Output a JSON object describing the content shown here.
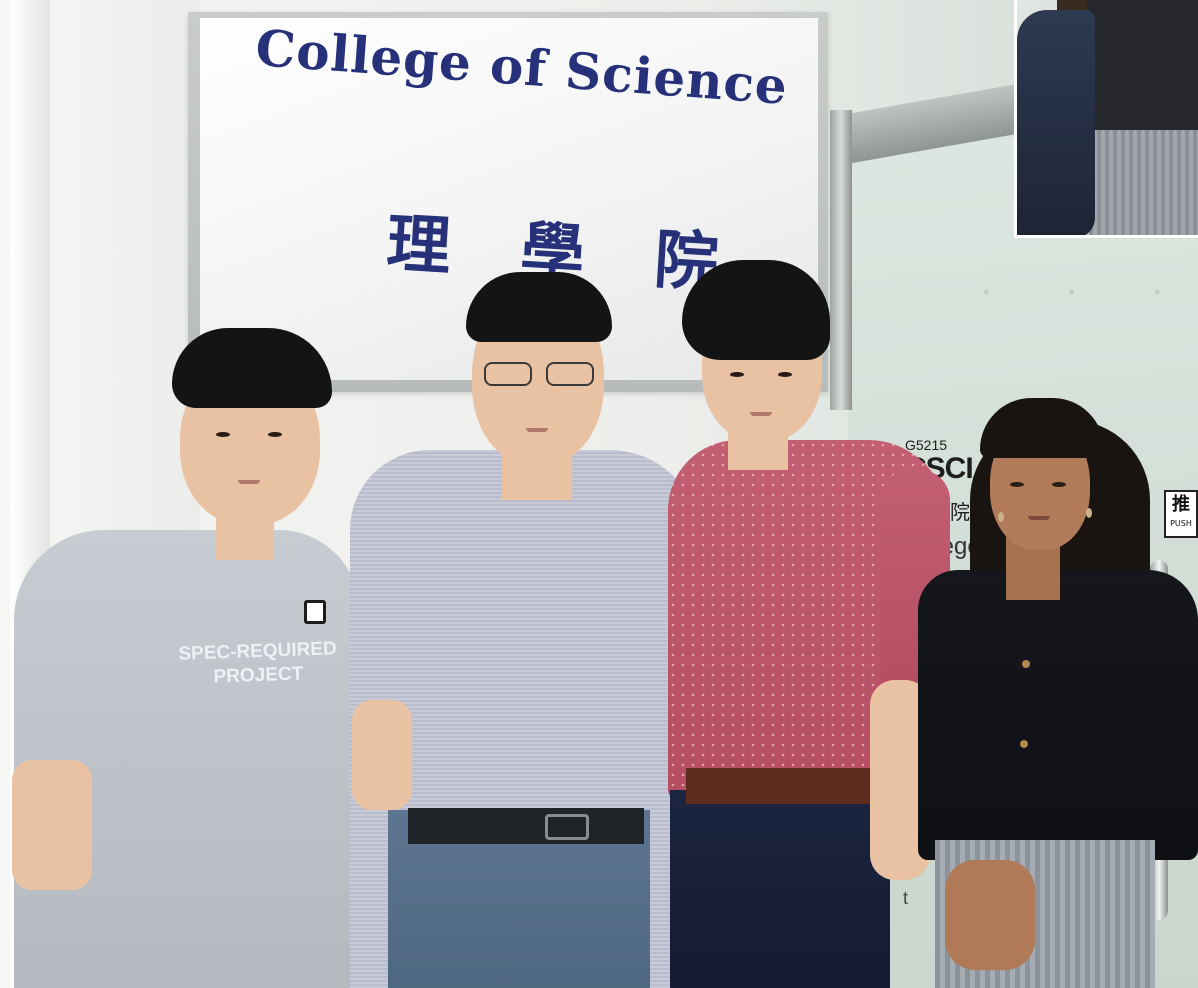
{
  "sign": {
    "english": "College of Science",
    "chinese_1": "理",
    "chinese_2": "學",
    "chinese_3": "院"
  },
  "door": {
    "room_code": "G5215",
    "department": "CSCI",
    "chinese_fragment": "學院",
    "english_fragment": "llege",
    "trailing_letter": "t",
    "push_sign_zh": "推",
    "push_sign_en": "PUSH"
  },
  "shirt": {
    "line1": "SPEC-REQUIRED",
    "line2": "PROJECT"
  },
  "colors": {
    "sign_text": "#27317a",
    "pink_shirt": "#c35f72",
    "grey_tshirt": "#c6ccd1",
    "glass": "#d2dcd6"
  }
}
